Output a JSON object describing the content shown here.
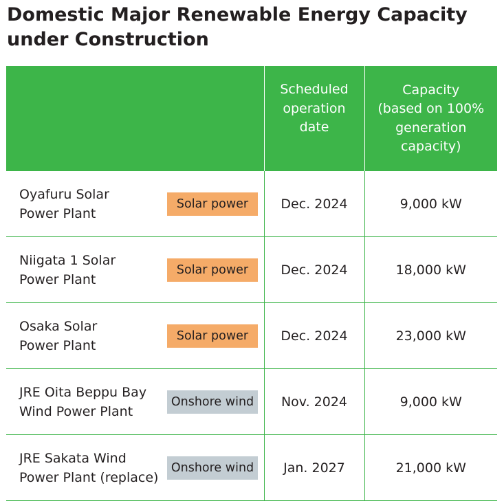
{
  "title": {
    "line1": "Domestic Major Renewable Energy Capacity",
    "line2": "under Construction"
  },
  "colors": {
    "header_green": "#3db549",
    "solar_badge": "#f5ab68",
    "wind_badge": "#c3cdd3"
  },
  "header": {
    "name": "",
    "date": [
      "Scheduled",
      "operation",
      "date"
    ],
    "capacity": [
      "Capacity",
      "(based on 100%",
      "generation",
      "capacity)"
    ]
  },
  "rows": [
    {
      "name": [
        "Oyafuru Solar",
        "Power Plant"
      ],
      "type": "Solar power",
      "date": "Dec. 2024",
      "capacity": "9,000 kW"
    },
    {
      "name": [
        "Niigata 1 Solar",
        "Power Plant"
      ],
      "type": "Solar power",
      "date": "Dec. 2024",
      "capacity": "18,000 kW"
    },
    {
      "name": [
        "Osaka Solar",
        "Power Plant"
      ],
      "type": "Solar power",
      "date": "Dec. 2024",
      "capacity": "23,000 kW"
    },
    {
      "name": [
        "JRE Oita Beppu Bay",
        "Wind Power Plant"
      ],
      "type": "Onshore wind",
      "date": "Nov. 2024",
      "capacity": "9,000 kW"
    },
    {
      "name": [
        "JRE Sakata Wind",
        "Power Plant (replace)"
      ],
      "type": "Onshore wind",
      "date": "Jan. 2027",
      "capacity": "21,000 kW"
    }
  ]
}
